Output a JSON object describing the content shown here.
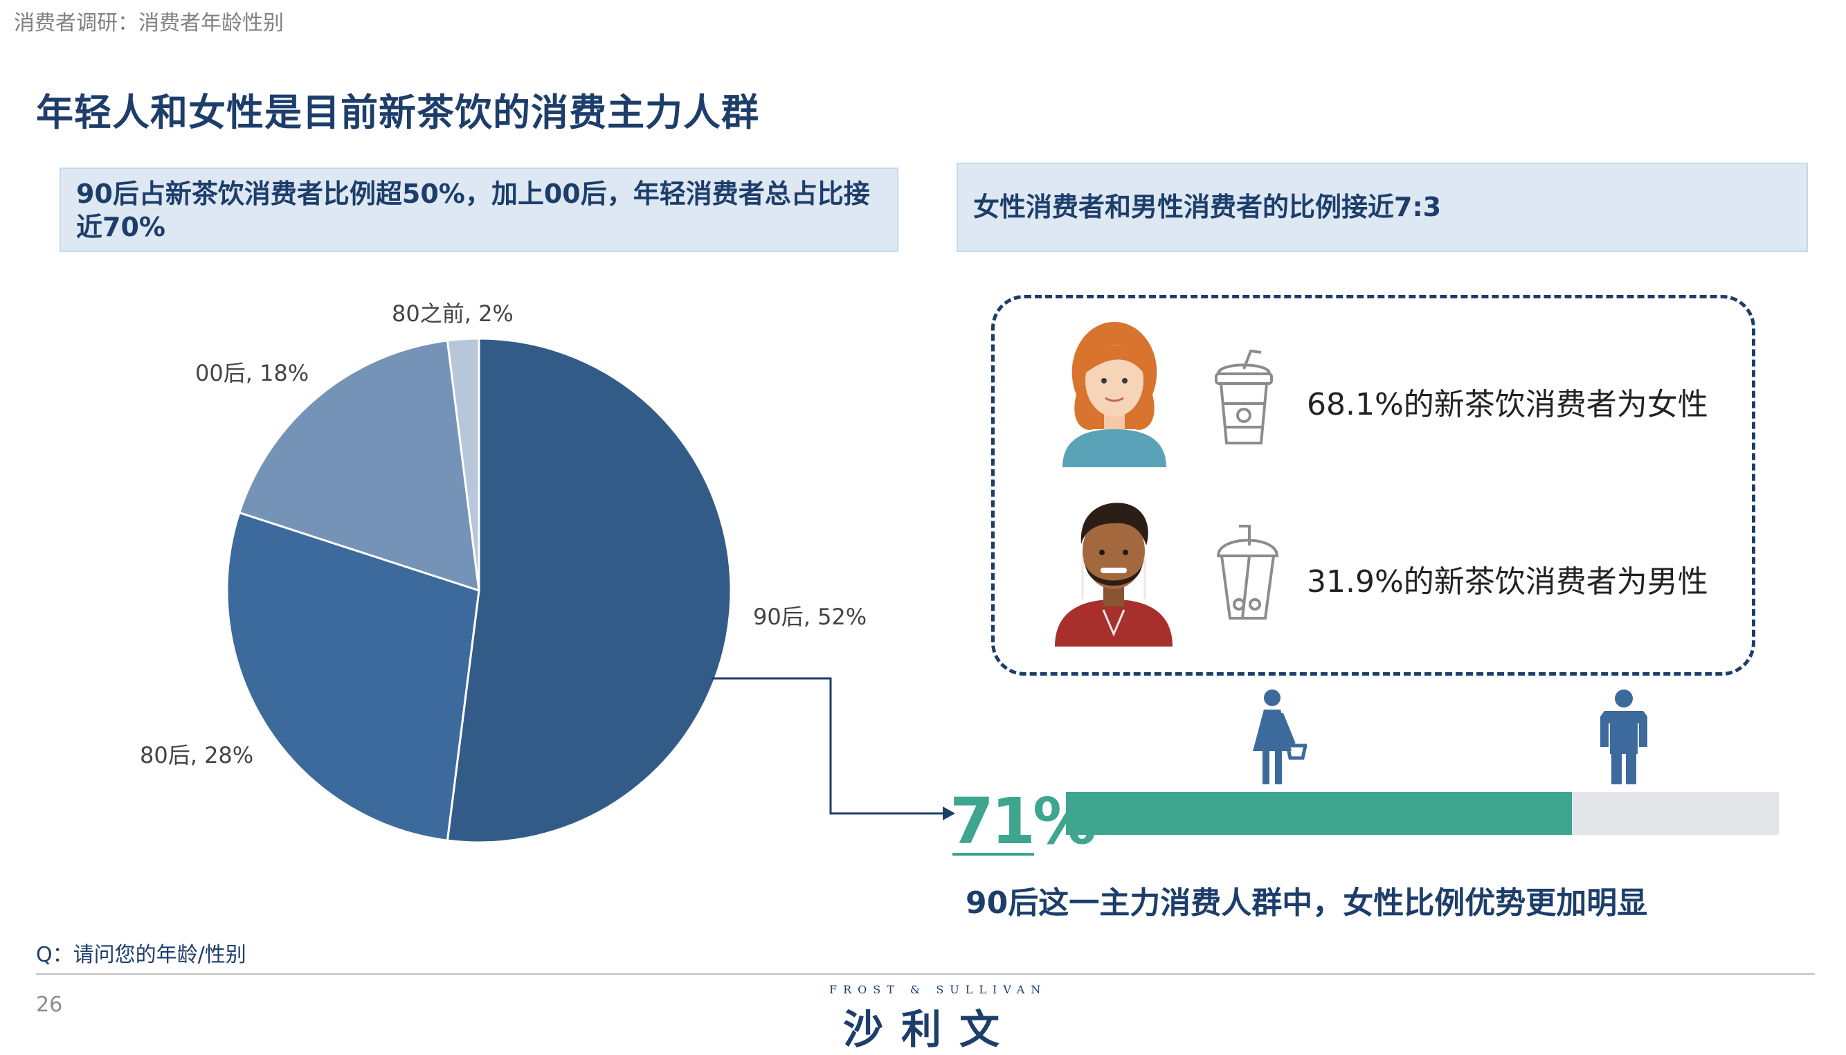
{
  "breadcrumb": "消费者调研：消费者年龄性别",
  "title": "年轻人和女性是目前新茶饮的消费主力人群",
  "left_callout": {
    "line1": "90后占新茶饮消费者比例超50%，加上00后，年轻消费者总占比接",
    "line2": "近70%"
  },
  "right_callout": "女性消费者和男性消费者的比例接近7:3",
  "chart_data": {
    "type": "pie",
    "categories": [
      "90后",
      "80后",
      "00后",
      "80之前"
    ],
    "values": [
      52,
      28,
      18,
      2
    ],
    "labels": [
      "90后, 52%",
      "80后, 28%",
      "00后, 18%",
      "80之前, 2%"
    ],
    "colors": [
      "#335b87",
      "#3d6a9c",
      "#7593b7",
      "#b8c6da"
    ]
  },
  "gender": {
    "female_text": "68.1%的新茶饮消费者为女性",
    "male_text": "31.9%的新茶饮消费者为男性"
  },
  "post90": {
    "female_pct_label": "71%",
    "female_fraction": 0.71,
    "bar_color": "#3ea58f",
    "caption": "90后这一主力消费人群中，女性比例优势更加明显"
  },
  "question": "Q：请问您的年龄/性别",
  "page_number": "26",
  "logo": {
    "small": "FROST & SULLIVAN",
    "main": "沙利文"
  }
}
